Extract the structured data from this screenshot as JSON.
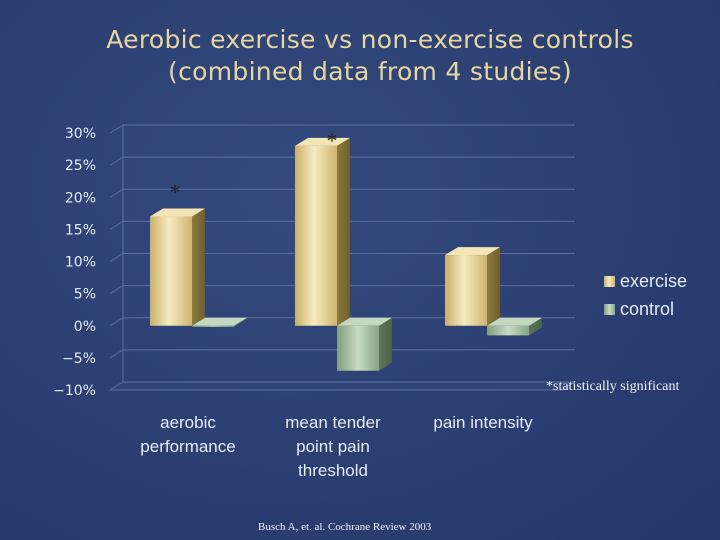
{
  "title": {
    "line1": "Aerobic exercise vs non-exercise controls",
    "line2": "(combined data from 4 studies)"
  },
  "colors": {
    "background": "#2b3f72",
    "title": "#e8d6a0",
    "exercise": "#e0cf90",
    "control": "#a9c3a4",
    "axis_text": "#e6ecf6"
  },
  "chart_data": {
    "type": "bar",
    "style": "3d-clustered",
    "categories": [
      [
        "aerobic",
        "performance"
      ],
      [
        "mean tender",
        "point pain",
        "threshold"
      ],
      [
        "pain intensity"
      ]
    ],
    "series": [
      {
        "name": "exercise",
        "values": [
          17,
          28,
          11
        ]
      },
      {
        "name": "control",
        "values": [
          0,
          -7,
          -1.5
        ]
      }
    ],
    "ylim": [
      -10,
      30
    ],
    "yticks": [
      "30%",
      "25%",
      "20%",
      "15%",
      "10%",
      "5%",
      "0%",
      "−5%",
      "−10%"
    ],
    "ytick_values": [
      30,
      25,
      20,
      15,
      10,
      5,
      0,
      -5,
      -10
    ],
    "grid": true,
    "legend_position": "right",
    "significance_marker": "*",
    "significant_indices": [
      0,
      1
    ]
  },
  "footnote": "*statistically significant",
  "source": "Busch A, et. al. Cochrane Review 2003"
}
